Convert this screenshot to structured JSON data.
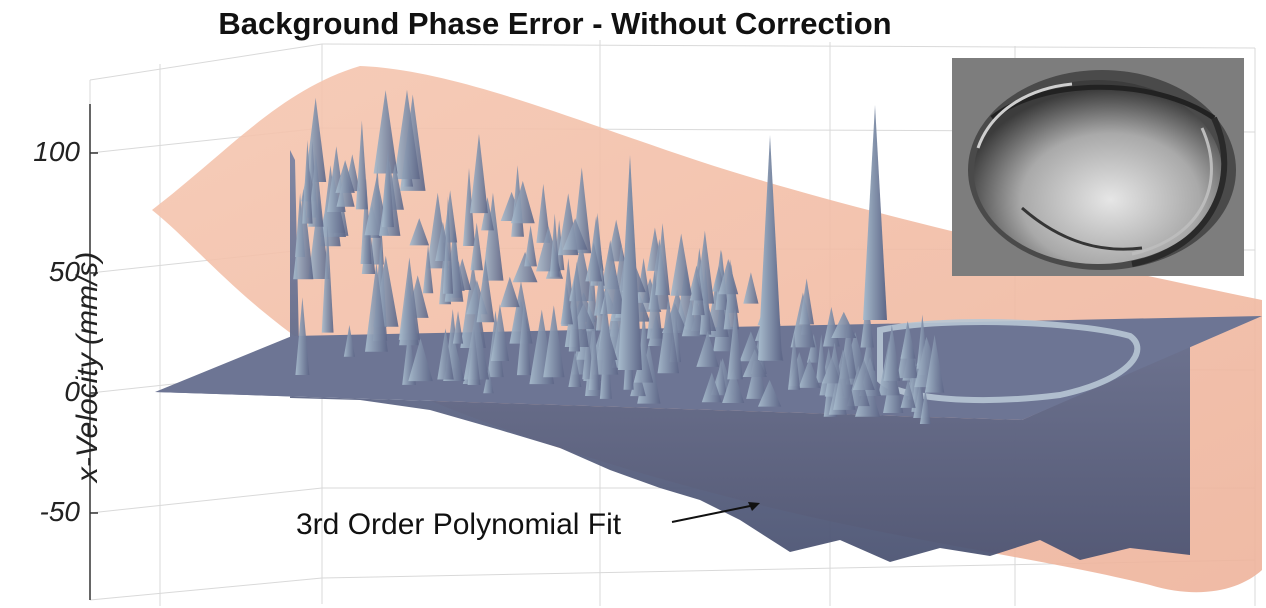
{
  "chart_data": {
    "type": "surface",
    "title": "Background Phase Error - Without Correction",
    "ylabel": "x-Velocity (mm/s)",
    "ylim": [
      -80,
      130
    ],
    "yticks": [
      100,
      50,
      0,
      -50
    ],
    "grid": true,
    "series": [
      {
        "name": "3rd Order Polynomial Fit",
        "color": "#f2b8a0"
      }
    ],
    "annotations": [
      {
        "text": "3rd Order Polynomial Fit"
      }
    ],
    "inset": {
      "kind": "grayscale phase image"
    }
  },
  "colors": {
    "surface": "#6d7594",
    "surface_highlight": "#9fb4c8",
    "fit_surface": "#f2b8a0",
    "grid": "#d9d9d9",
    "inset_background": "#7d7d7d"
  }
}
